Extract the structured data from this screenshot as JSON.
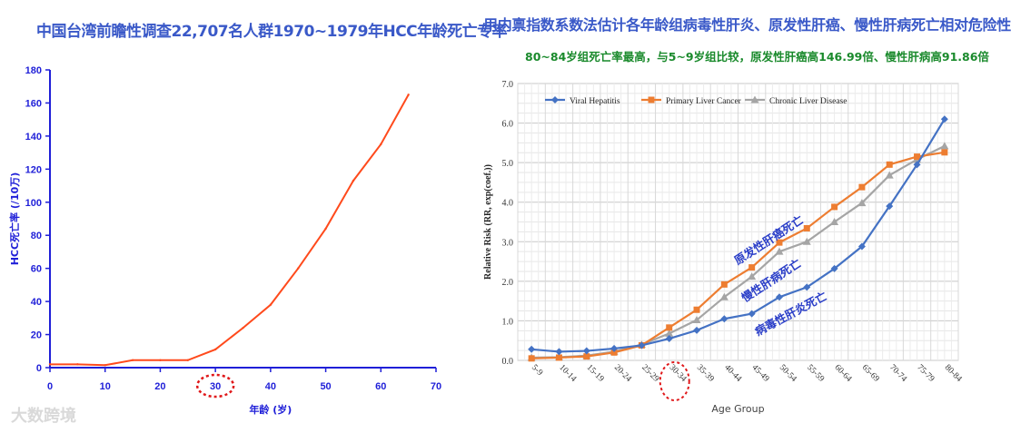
{
  "watermark": "大数跨境",
  "chart_data": [
    {
      "type": "line",
      "title": "中国台湾前瞻性调查22,707名人群1970~1979年HCC年龄死亡专率",
      "xlabel": "年龄 (岁)",
      "ylabel": "HCC死亡率 (/10万)",
      "xlim": [
        0,
        70
      ],
      "ylim": [
        0,
        180
      ],
      "xticks": [
        0,
        10,
        20,
        30,
        40,
        50,
        60,
        70
      ],
      "yticks": [
        0,
        20,
        40,
        60,
        80,
        100,
        120,
        140,
        160,
        180
      ],
      "grid": false,
      "highlight_tick": 30,
      "colors": {
        "line": "#ff4a1c",
        "axis": "#1f1fd8",
        "title": "#3a59c8"
      },
      "series": [
        {
          "x": [
            0,
            5,
            10,
            15,
            20,
            25,
            30,
            35,
            40,
            45,
            50,
            55,
            60,
            65
          ],
          "values": [
            2,
            2,
            1.5,
            4.5,
            4.5,
            4.5,
            11,
            24,
            38,
            60,
            84,
            113,
            135,
            165
          ]
        }
      ]
    },
    {
      "type": "line",
      "title": "用内禀指数系数法估计各年龄组病毒性肝炎、原发性肝癌、慢性肝病死亡相对危险性",
      "subtitle": "80~84岁组死亡率最高，与5~9岁组比较，原发性肝癌高146.99倍、慢性肝病高91.86倍",
      "xlabel": "Age Group",
      "ylabel": "Relative Risk (RR, exp(coef.))",
      "ylim": [
        0,
        7
      ],
      "yticks": [
        "0.0",
        "1.0",
        "2.0",
        "3.0",
        "4.0",
        "5.0",
        "6.0",
        "7.0"
      ],
      "grid": true,
      "legend": "top-left",
      "highlight_category": "30-34",
      "categories": [
        "5-9",
        "10-14",
        "15-19",
        "20-24",
        "25-29",
        "30-34",
        "35-39",
        "40-44",
        "45-49",
        "50-54",
        "55-59",
        "60-64",
        "65-69",
        "70-74",
        "75-79",
        "80-84"
      ],
      "series": [
        {
          "name": "Viral Hepatitis",
          "color": "#4472c4",
          "values": [
            0.28,
            0.22,
            0.24,
            0.3,
            0.38,
            0.55,
            0.76,
            1.05,
            1.18,
            1.6,
            1.85,
            2.32,
            2.88,
            3.9,
            4.95,
            6.1
          ]
        },
        {
          "name": "Primary Liver Cancer",
          "color": "#ed7d31",
          "values": [
            0.05,
            0.07,
            0.1,
            0.2,
            0.38,
            0.83,
            1.28,
            1.92,
            2.35,
            2.98,
            3.34,
            3.88,
            4.38,
            4.95,
            5.15,
            5.26
          ]
        },
        {
          "name": "Chronic Liver Disease",
          "color": "#a5a5a5",
          "values": [
            0.07,
            0.08,
            0.12,
            0.22,
            0.4,
            0.68,
            1.02,
            1.6,
            2.12,
            2.75,
            3.0,
            3.5,
            3.98,
            4.68,
            5.08,
            5.42
          ]
        }
      ],
      "annotations": [
        "原发性肝癌死亡",
        "慢性肝病死亡",
        "病毒性肝炎死亡"
      ]
    }
  ]
}
